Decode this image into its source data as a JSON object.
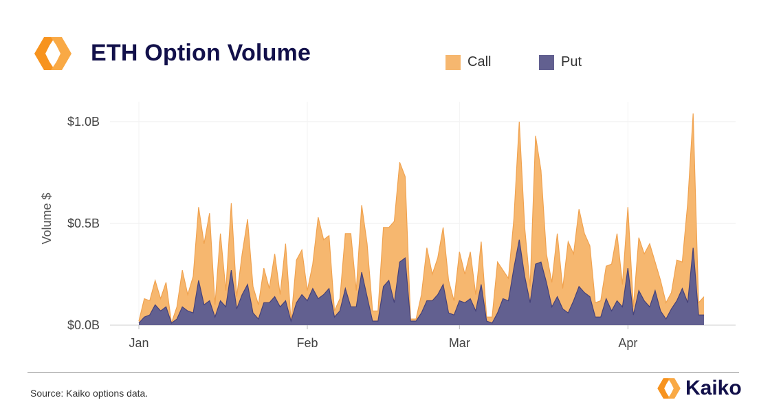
{
  "header": {
    "title": "ETH Option Volume"
  },
  "legend": {
    "call_label": "Call",
    "put_label": "Put"
  },
  "footer": {
    "source": "Source: Kaiko options data.",
    "brand": "Kaiko"
  },
  "colors": {
    "call": "#f6b76f",
    "call_line": "#f0a24f",
    "put": "#626090",
    "put_line": "#45427a",
    "title": "#12104a",
    "logo": "#f7931e"
  },
  "chart_data": {
    "type": "area",
    "stacked": false,
    "ylabel": "Volume $",
    "xlabel": "",
    "ylim": [
      0,
      1.05
    ],
    "y_unit": "billion USD",
    "yticks": [
      {
        "value": 0.0,
        "label": "$0.0B"
      },
      {
        "value": 0.5,
        "label": "$0.5B"
      },
      {
        "value": 1.0,
        "label": "$1.0B"
      }
    ],
    "x_start": "2021-01-01",
    "x_end": "2021-04-15",
    "xticks": [
      {
        "date": "2021-01-01",
        "label": "Jan"
      },
      {
        "date": "2021-02-01",
        "label": "Feb"
      },
      {
        "date": "2021-03-01",
        "label": "Mar"
      },
      {
        "date": "2021-04-01",
        "label": "Apr"
      }
    ],
    "grid": true,
    "legend_position": "top",
    "dates": [
      "2021-01-01",
      "2021-01-02",
      "2021-01-03",
      "2021-01-04",
      "2021-01-05",
      "2021-01-06",
      "2021-01-07",
      "2021-01-08",
      "2021-01-09",
      "2021-01-10",
      "2021-01-11",
      "2021-01-12",
      "2021-01-13",
      "2021-01-14",
      "2021-01-15",
      "2021-01-16",
      "2021-01-17",
      "2021-01-18",
      "2021-01-19",
      "2021-01-20",
      "2021-01-21",
      "2021-01-22",
      "2021-01-23",
      "2021-01-24",
      "2021-01-25",
      "2021-01-26",
      "2021-01-27",
      "2021-01-28",
      "2021-01-29",
      "2021-01-30",
      "2021-01-31",
      "2021-02-01",
      "2021-02-02",
      "2021-02-03",
      "2021-02-04",
      "2021-02-05",
      "2021-02-06",
      "2021-02-07",
      "2021-02-08",
      "2021-02-09",
      "2021-02-10",
      "2021-02-11",
      "2021-02-12",
      "2021-02-13",
      "2021-02-14",
      "2021-02-15",
      "2021-02-16",
      "2021-02-17",
      "2021-02-18",
      "2021-02-19",
      "2021-02-20",
      "2021-02-21",
      "2021-02-22",
      "2021-02-23",
      "2021-02-24",
      "2021-02-25",
      "2021-02-26",
      "2021-02-27",
      "2021-02-28",
      "2021-03-01",
      "2021-03-02",
      "2021-03-03",
      "2021-03-04",
      "2021-03-05",
      "2021-03-06",
      "2021-03-07",
      "2021-03-08",
      "2021-03-09",
      "2021-03-10",
      "2021-03-11",
      "2021-03-12",
      "2021-03-13",
      "2021-03-14",
      "2021-03-15",
      "2021-03-16",
      "2021-03-17",
      "2021-03-18",
      "2021-03-19",
      "2021-03-20",
      "2021-03-21",
      "2021-03-22",
      "2021-03-23",
      "2021-03-24",
      "2021-03-25",
      "2021-03-26",
      "2021-03-27",
      "2021-03-28",
      "2021-03-29",
      "2021-03-30",
      "2021-03-31",
      "2021-04-01",
      "2021-04-02",
      "2021-04-03",
      "2021-04-04",
      "2021-04-05",
      "2021-04-06",
      "2021-04-07",
      "2021-04-08",
      "2021-04-09",
      "2021-04-10",
      "2021-04-11",
      "2021-04-12",
      "2021-04-13",
      "2021-04-14",
      "2021-04-15"
    ],
    "series": [
      {
        "name": "Call",
        "values": [
          0.02,
          0.13,
          0.12,
          0.22,
          0.13,
          0.21,
          0.01,
          0.09,
          0.27,
          0.15,
          0.24,
          0.58,
          0.4,
          0.55,
          0.1,
          0.45,
          0.17,
          0.6,
          0.14,
          0.35,
          0.52,
          0.19,
          0.1,
          0.28,
          0.18,
          0.35,
          0.15,
          0.4,
          0.02,
          0.32,
          0.37,
          0.17,
          0.3,
          0.53,
          0.42,
          0.44,
          0.07,
          0.13,
          0.45,
          0.45,
          0.17,
          0.59,
          0.4,
          0.07,
          0.07,
          0.48,
          0.48,
          0.51,
          0.8,
          0.73,
          0.03,
          0.03,
          0.15,
          0.38,
          0.25,
          0.33,
          0.48,
          0.22,
          0.12,
          0.36,
          0.25,
          0.36,
          0.15,
          0.41,
          0.04,
          0.04,
          0.31,
          0.27,
          0.23,
          0.52,
          1.0,
          0.48,
          0.19,
          0.93,
          0.76,
          0.35,
          0.21,
          0.45,
          0.18,
          0.41,
          0.35,
          0.57,
          0.45,
          0.39,
          0.11,
          0.12,
          0.29,
          0.3,
          0.45,
          0.2,
          0.58,
          0.09,
          0.43,
          0.35,
          0.4,
          0.31,
          0.22,
          0.11,
          0.16,
          0.32,
          0.31,
          0.6,
          1.04,
          0.11,
          0.14
        ]
      },
      {
        "name": "Put",
        "values": [
          0.01,
          0.04,
          0.05,
          0.1,
          0.07,
          0.09,
          0.01,
          0.03,
          0.09,
          0.07,
          0.06,
          0.22,
          0.1,
          0.12,
          0.04,
          0.12,
          0.09,
          0.27,
          0.08,
          0.15,
          0.2,
          0.06,
          0.03,
          0.11,
          0.11,
          0.14,
          0.09,
          0.12,
          0.02,
          0.11,
          0.15,
          0.12,
          0.18,
          0.13,
          0.15,
          0.18,
          0.04,
          0.07,
          0.18,
          0.09,
          0.09,
          0.26,
          0.14,
          0.02,
          0.02,
          0.19,
          0.22,
          0.11,
          0.31,
          0.33,
          0.02,
          0.02,
          0.06,
          0.12,
          0.12,
          0.15,
          0.2,
          0.06,
          0.05,
          0.12,
          0.11,
          0.13,
          0.07,
          0.2,
          0.02,
          0.01,
          0.06,
          0.13,
          0.12,
          0.28,
          0.42,
          0.24,
          0.11,
          0.3,
          0.31,
          0.21,
          0.09,
          0.14,
          0.08,
          0.06,
          0.12,
          0.19,
          0.16,
          0.14,
          0.04,
          0.04,
          0.13,
          0.07,
          0.12,
          0.09,
          0.28,
          0.05,
          0.17,
          0.12,
          0.09,
          0.17,
          0.07,
          0.03,
          0.08,
          0.12,
          0.18,
          0.11,
          0.38,
          0.05,
          0.05
        ]
      }
    ]
  }
}
